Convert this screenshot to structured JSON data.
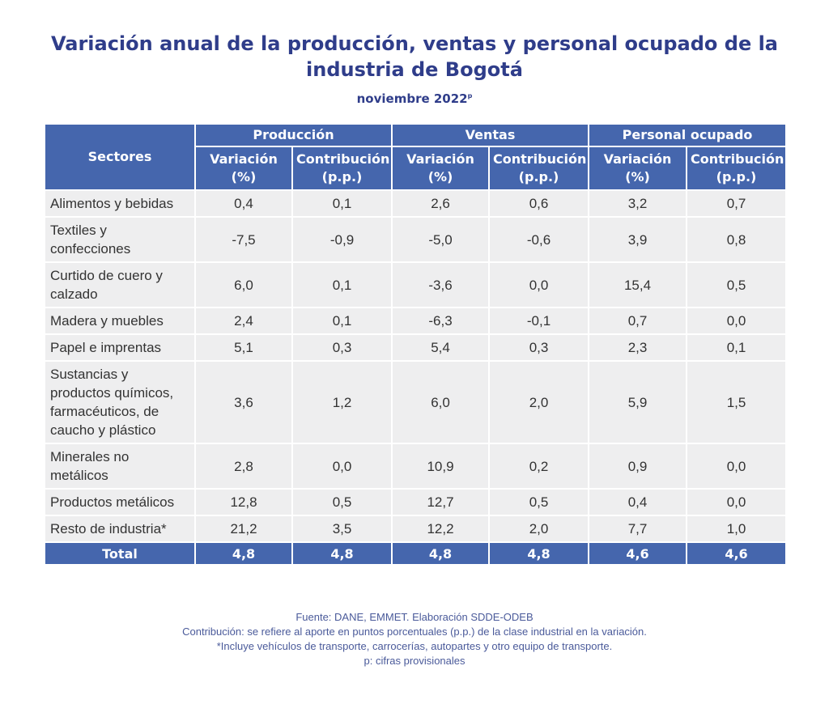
{
  "title_line1": "Variación anual de la producción, ventas y personal ocupado de la",
  "title_line2": "industria de Bogotá",
  "subtitle": "noviembre 2022",
  "subtitle_sup": "p",
  "header": {
    "sectores": "Sectores",
    "groups": [
      "Producción",
      "Ventas",
      "Personal ocupado"
    ],
    "variacion": [
      "Variación",
      "(%)"
    ],
    "contribucion": [
      "Contribución",
      "(p.p.)"
    ]
  },
  "rows": [
    {
      "sector": "Alimentos y bebidas",
      "values": [
        "0,4",
        "0,1",
        "2,6",
        "0,6",
        "3,2",
        "0,7"
      ]
    },
    {
      "sector": "Textiles y confecciones",
      "values": [
        "-7,5",
        "-0,9",
        "-5,0",
        "-0,6",
        "3,9",
        "0,8"
      ]
    },
    {
      "sector": "Curtido de cuero y calzado",
      "values": [
        "6,0",
        "0,1",
        "-3,6",
        "0,0",
        "15,4",
        "0,5"
      ]
    },
    {
      "sector": "Madera y muebles",
      "values": [
        "2,4",
        "0,1",
        "-6,3",
        "-0,1",
        "0,7",
        "0,0"
      ]
    },
    {
      "sector": "Papel e imprentas",
      "values": [
        "5,1",
        "0,3",
        "5,4",
        "0,3",
        "2,3",
        "0,1"
      ]
    },
    {
      "sector": "Sustancias y productos químicos, farmacéuticos, de caucho y plástico",
      "values": [
        "3,6",
        "1,2",
        "6,0",
        "2,0",
        "5,9",
        "1,5"
      ]
    },
    {
      "sector": "Minerales no metálicos",
      "values": [
        "2,8",
        "0,0",
        "10,9",
        "0,2",
        "0,9",
        "0,0"
      ]
    },
    {
      "sector": "Productos metálicos",
      "values": [
        "12,8",
        "0,5",
        "12,7",
        "0,5",
        "0,4",
        "0,0"
      ]
    },
    {
      "sector": "Resto de industria*",
      "values": [
        "21,2",
        "3,5",
        "12,2",
        "2,0",
        "7,7",
        "1,0"
      ]
    }
  ],
  "total": {
    "label": "Total",
    "values": [
      "4,8",
      "4,8",
      "4,8",
      "4,8",
      "4,6",
      "4,6"
    ]
  },
  "notes": [
    "Fuente: DANE, EMMET. Elaboración SDDE-ODEB",
    "Contribución: se refiere al aporte en puntos porcentuales (p.p.) de la clase industrial en la variación.",
    "*Incluye vehículos de transporte, carrocerías, autopartes y otro equipo de transporte.",
    "p: cifras provisionales"
  ]
}
